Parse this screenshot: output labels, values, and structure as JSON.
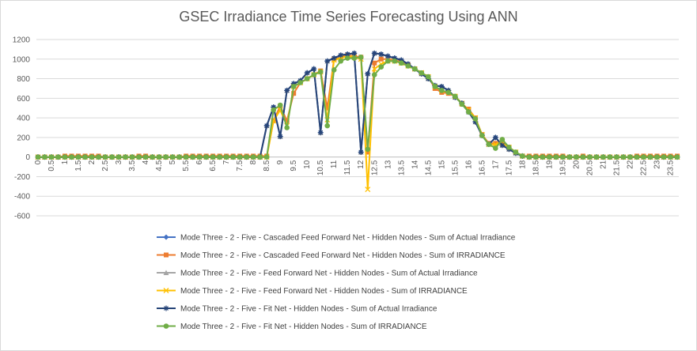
{
  "chart_data": {
    "type": "line",
    "title": "GSEC Irradiance Time Series Forecasting Using ANN",
    "xlabel": "",
    "ylabel": "",
    "ylim": [
      -600,
      1200
    ],
    "yticks": [
      -600,
      -400,
      -200,
      0,
      200,
      400,
      600,
      800,
      1000,
      1200
    ],
    "xlim": [
      0,
      23.5
    ],
    "x_tick_labels": [
      "0",
      "0.5",
      "1",
      "1.5",
      "2",
      "2.5",
      "3",
      "3.5",
      "4",
      "4.5",
      "5",
      "5.5",
      "6",
      "6.5",
      "7",
      "7.5",
      "8",
      "8.5",
      "9",
      "9.5",
      "10",
      "10.5",
      "11",
      "11.5",
      "12",
      "12.5",
      "13",
      "13.5",
      "14",
      "14.5",
      "15",
      "15.5",
      "16",
      "16.5",
      "17",
      "17.5",
      "18",
      "18.5",
      "19",
      "19.5",
      "20",
      "20.5",
      "21",
      "21.5",
      "22",
      "22.5",
      "23",
      "23.5"
    ],
    "grid": "horizontal",
    "legend_position": "bottom",
    "x": [
      0,
      0.25,
      0.5,
      0.75,
      1,
      1.25,
      1.5,
      1.75,
      2,
      2.25,
      2.5,
      2.75,
      3,
      3.25,
      3.5,
      3.75,
      4,
      4.25,
      4.5,
      4.75,
      5,
      5.25,
      5.5,
      5.75,
      6,
      6.25,
      6.5,
      6.75,
      7,
      7.25,
      7.5,
      7.75,
      8,
      8.25,
      8.5,
      8.75,
      9,
      9.25,
      9.5,
      9.75,
      10,
      10.25,
      10.5,
      10.75,
      11,
      11.25,
      11.5,
      11.75,
      12,
      12.25,
      12.5,
      12.75,
      13,
      13.25,
      13.5,
      13.75,
      14,
      14.25,
      14.5,
      14.75,
      15,
      15.25,
      15.5,
      15.75,
      16,
      16.25,
      16.5,
      16.75,
      17,
      17.25,
      17.5,
      17.75,
      18,
      18.25,
      18.5,
      18.75,
      19,
      19.25,
      19.5,
      19.75,
      20,
      20.25,
      20.5,
      20.75,
      21,
      21.25,
      21.5,
      21.75,
      22,
      22.25,
      22.5,
      22.75,
      23,
      23.25,
      23.5,
      23.75
    ],
    "series": [
      {
        "name": "Mode Three - 2 - Five - Cascaded Feed Forward Net - Hidden Nodes - Sum of Actual Irradiance",
        "color": "#4472c4",
        "marker": "diamond",
        "values": [
          0,
          0,
          0,
          0,
          0,
          0,
          0,
          0,
          0,
          0,
          0,
          0,
          0,
          0,
          0,
          0,
          0,
          0,
          0,
          0,
          0,
          0,
          0,
          0,
          0,
          0,
          0,
          0,
          0,
          0,
          0,
          0,
          0,
          0,
          320,
          510,
          210,
          680,
          750,
          780,
          860,
          900,
          250,
          980,
          1010,
          1040,
          1050,
          1060,
          50,
          850,
          1060,
          1050,
          1030,
          1010,
          990,
          950,
          900,
          850,
          800,
          730,
          720,
          680,
          610,
          550,
          460,
          360,
          220,
          130,
          200,
          120,
          80,
          40,
          10,
          0,
          0,
          0,
          0,
          0,
          0,
          0,
          0,
          0,
          0,
          0,
          0,
          0,
          0,
          0,
          0,
          0,
          0,
          0,
          0,
          0,
          0,
          0
        ]
      },
      {
        "name": "Mode Three - 2 - Five - Cascaded Feed Forward Net - Hidden Nodes - Sum of IRRADIANCE",
        "color": "#ed7d31",
        "marker": "square",
        "values": [
          0,
          0,
          0,
          0,
          10,
          10,
          10,
          10,
          10,
          10,
          0,
          0,
          0,
          0,
          0,
          10,
          10,
          0,
          0,
          0,
          0,
          0,
          10,
          10,
          10,
          10,
          10,
          10,
          10,
          10,
          10,
          10,
          10,
          10,
          10,
          370,
          520,
          370,
          650,
          760,
          800,
          840,
          880,
          500,
          1000,
          1020,
          1040,
          1030,
          1020,
          50,
          960,
          1000,
          1000,
          990,
          970,
          940,
          900,
          860,
          820,
          700,
          660,
          650,
          620,
          540,
          490,
          400,
          230,
          140,
          140,
          150,
          100,
          50,
          10,
          10,
          10,
          10,
          10,
          10,
          10,
          0,
          0,
          10,
          0,
          0,
          0,
          0,
          0,
          0,
          0,
          10,
          10,
          10,
          10,
          10,
          10,
          10
        ]
      },
      {
        "name": "Mode Three - 2 - Five - Feed Forward Net - Hidden Nodes - Sum of Actual Irradiance",
        "color": "#a5a5a5",
        "marker": "triangle",
        "values": [
          0,
          0,
          0,
          0,
          0,
          0,
          0,
          0,
          0,
          0,
          0,
          0,
          0,
          0,
          0,
          0,
          0,
          0,
          0,
          0,
          0,
          0,
          0,
          0,
          0,
          0,
          0,
          0,
          0,
          0,
          0,
          0,
          0,
          0,
          320,
          510,
          210,
          680,
          750,
          780,
          860,
          900,
          250,
          980,
          1010,
          1040,
          1050,
          1060,
          50,
          850,
          1060,
          1050,
          1030,
          1010,
          990,
          950,
          900,
          850,
          800,
          730,
          720,
          680,
          610,
          550,
          460,
          360,
          220,
          130,
          200,
          120,
          80,
          40,
          10,
          0,
          0,
          0,
          0,
          0,
          0,
          0,
          0,
          0,
          0,
          0,
          0,
          0,
          0,
          0,
          0,
          0,
          0,
          0,
          0,
          0,
          0,
          0
        ]
      },
      {
        "name": "Mode Three - 2 - Five - Feed Forward Net - Hidden Nodes - Sum of IRRADIANCE",
        "color": "#ffc000",
        "marker": "x",
        "values": [
          0,
          0,
          0,
          0,
          0,
          0,
          0,
          0,
          0,
          0,
          0,
          0,
          0,
          0,
          0,
          0,
          0,
          0,
          0,
          0,
          0,
          0,
          0,
          0,
          0,
          0,
          0,
          0,
          0,
          0,
          0,
          0,
          0,
          0,
          0,
          370,
          480,
          320,
          720,
          760,
          800,
          840,
          870,
          380,
          990,
          1010,
          1030,
          1020,
          1000,
          -330,
          900,
          950,
          980,
          980,
          960,
          930,
          900,
          860,
          820,
          720,
          680,
          660,
          620,
          550,
          480,
          400,
          230,
          130,
          130,
          140,
          100,
          50,
          10,
          0,
          0,
          0,
          0,
          0,
          0,
          0,
          0,
          0,
          0,
          0,
          0,
          0,
          0,
          0,
          0,
          0,
          0,
          0,
          0,
          0,
          0,
          0
        ]
      },
      {
        "name": "Mode Three - 2 - Five - Fit Net - Hidden Nodes - Sum of Actual Irradiance",
        "color": "#264478",
        "marker": "star",
        "values": [
          0,
          0,
          0,
          0,
          0,
          0,
          0,
          0,
          0,
          0,
          0,
          0,
          0,
          0,
          0,
          0,
          0,
          0,
          0,
          0,
          0,
          0,
          0,
          0,
          0,
          0,
          0,
          0,
          0,
          0,
          0,
          0,
          0,
          0,
          320,
          510,
          210,
          680,
          750,
          780,
          860,
          900,
          250,
          980,
          1010,
          1040,
          1050,
          1060,
          50,
          850,
          1060,
          1050,
          1030,
          1010,
          990,
          950,
          900,
          850,
          800,
          730,
          720,
          680,
          610,
          550,
          460,
          360,
          220,
          130,
          200,
          120,
          80,
          40,
          10,
          0,
          0,
          0,
          0,
          0,
          0,
          0,
          0,
          0,
          0,
          0,
          0,
          0,
          0,
          0,
          0,
          0,
          0,
          0,
          0,
          0,
          0,
          0
        ]
      },
      {
        "name": "Mode Three - 2 - Five - Fit Net - Hidden Nodes - Sum of IRRADIANCE",
        "color": "#70ad47",
        "marker": "circle",
        "values": [
          0,
          0,
          0,
          0,
          0,
          0,
          0,
          0,
          0,
          0,
          0,
          0,
          0,
          0,
          0,
          0,
          0,
          0,
          0,
          0,
          0,
          0,
          0,
          0,
          0,
          0,
          0,
          0,
          0,
          0,
          0,
          0,
          0,
          0,
          0,
          480,
          530,
          300,
          720,
          760,
          800,
          840,
          870,
          320,
          890,
          980,
          1010,
          1010,
          1020,
          80,
          840,
          920,
          980,
          980,
          960,
          930,
          900,
          860,
          820,
          720,
          680,
          660,
          620,
          540,
          460,
          390,
          220,
          130,
          90,
          180,
          100,
          50,
          10,
          0,
          0,
          0,
          0,
          0,
          0,
          0,
          0,
          0,
          0,
          0,
          0,
          0,
          0,
          0,
          0,
          0,
          0,
          0,
          0,
          0,
          0,
          0
        ]
      }
    ]
  }
}
